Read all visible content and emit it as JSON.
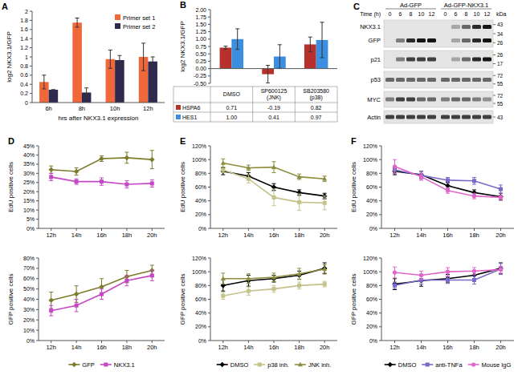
{
  "chart_data": [
    {
      "type": "bar",
      "title": "A",
      "y_label": "log2 NKX3.1/GFP",
      "x_label": "hrs after NKX3.1 expression",
      "categories": [
        "6h",
        "8h",
        "10h",
        "12h"
      ],
      "ylim": [
        0,
        2
      ],
      "yticks": [
        0,
        0.2,
        0.4,
        0.6,
        0.8,
        1,
        1.2,
        1.4,
        1.6,
        1.8,
        2
      ],
      "legend": "top-right",
      "series": [
        {
          "name": "Primer set 1",
          "color": "#f0673a",
          "values": [
            0.45,
            1.75,
            0.95,
            1.0
          ],
          "errors": [
            0.15,
            0.1,
            0.2,
            0.3
          ]
        },
        {
          "name": "Primer set 2",
          "color": "#2e2a4f",
          "values": [
            0.28,
            0.22,
            0.93,
            0.9
          ],
          "errors": [
            0.0,
            0.1,
            0.1,
            0.1
          ]
        }
      ]
    },
    {
      "type": "bar",
      "title": "B",
      "y_label": "log2 NKX3.1/GFP",
      "categories": [
        "DMSO",
        "SP600125 (JNK)",
        "SB203580 (p38)"
      ],
      "ylim": [
        -0.5,
        2.0
      ],
      "yticks": [
        {
          "value": -0.5,
          "label": "-0.50"
        },
        {
          "value": -0.25,
          "label": "-0.25"
        },
        {
          "value": 0,
          "label": "0.00"
        },
        {
          "value": 0.25,
          "label": "0.25"
        },
        {
          "value": 0.5,
          "label": "0.50"
        },
        {
          "value": 0.75,
          "label": "0.75"
        },
        {
          "value": 1,
          "label": "1.00"
        },
        {
          "value": 1.25,
          "label": "1.25"
        },
        {
          "value": 1.5,
          "label": "1.50"
        },
        {
          "value": 1.75,
          "label": "1.75"
        },
        {
          "value": 2,
          "label": "2.00"
        }
      ],
      "tick_labels": "y",
      "legend": "bottom",
      "series": [
        {
          "name": "HSPA6",
          "color": "#b8302b",
          "values": [
            0.71,
            -0.19,
            0.82
          ],
          "value_labels": [
            "0.71",
            "-0.19",
            "0.82"
          ],
          "errors": [
            0.05,
            0.3,
            0.25
          ]
        },
        {
          "name": "HES1",
          "color": "#3b8ee0",
          "values": [
            1.0,
            0.41,
            0.97
          ],
          "value_labels": [
            "1.00",
            "0.41",
            "0.97"
          ],
          "errors": [
            0.35,
            0.4,
            0.6
          ]
        }
      ]
    },
    {
      "type": "blot",
      "title": "C",
      "time_label": "Time (h)",
      "unit": "kDa",
      "groups": [
        {
          "name": "Ad-GFP",
          "lanes": [
            0,
            6,
            8,
            10,
            12
          ]
        },
        {
          "name": "Ad-GFP-NKX3.1",
          "lanes": [
            0,
            6,
            8,
            10,
            12
          ]
        }
      ],
      "panels": [
        {
          "bands": [
            {
              "name": "NKX3.1",
              "intensity": [
                0,
                0,
                0,
                0,
                0,
                0,
                0.3,
                0.6,
                0.9,
                1
              ]
            },
            {
              "name": "GFP",
              "intensity": [
                0,
                0.5,
                0.9,
                1,
                1,
                0,
                0.3,
                0.6,
                0.9,
                1
              ]
            }
          ],
          "markers": [
            43,
            34,
            26
          ]
        },
        {
          "bands": [
            {
              "name": "p21",
              "intensity": [
                0,
                0.5,
                0.8,
                0.8,
                0.8,
                0,
                0.3,
                0.6,
                0.9,
                1
              ]
            }
          ],
          "markers": [
            26,
            17
          ]
        },
        {
          "bands": [
            {
              "name": "p53",
              "intensity": [
                0.6,
                0.6,
                0.6,
                0.6,
                0.6,
                0.6,
                0.6,
                0.6,
                0.6,
                0.6
              ]
            }
          ],
          "markers": [
            72,
            55
          ]
        },
        {
          "bands": [
            {
              "name": "MYC",
              "intensity": [
                0.5,
                0.8,
                0.8,
                0.6,
                0.6,
                0.5,
                0.6,
                0.6,
                0.5,
                0.4
              ]
            }
          ],
          "markers": [
            72,
            55
          ]
        },
        {
          "bands": [
            {
              "name": "Actin",
              "intensity": [
                0.8,
                0.8,
                0.8,
                0.8,
                0.8,
                0.8,
                0.8,
                0.8,
                0.8,
                0.8
              ]
            }
          ],
          "markers": [
            43
          ]
        }
      ]
    },
    {
      "type": "line",
      "title": "D",
      "y_label": "EdU positive cells",
      "categories": [
        "12h",
        "14h",
        "16h",
        "18h",
        "20h"
      ],
      "ylim": [
        0,
        45
      ],
      "yticks": [
        {
          "value": 0,
          "label": "0%"
        },
        {
          "value": 5,
          "label": "5%"
        },
        {
          "value": 10,
          "label": "10%"
        },
        {
          "value": 15,
          "label": "15%"
        },
        {
          "value": 20,
          "label": "20%"
        },
        {
          "value": 25,
          "label": "25%"
        },
        {
          "value": 30,
          "label": "30%"
        },
        {
          "value": 35,
          "label": "35%"
        },
        {
          "value": 40,
          "label": "40%"
        },
        {
          "value": 45,
          "label": "45%"
        }
      ],
      "series": [
        {
          "color": "#7b7b2a",
          "marker": "diamond",
          "values": [
            32,
            31,
            38,
            38.5,
            37.5
          ],
          "errors": [
            2,
            2,
            1.5,
            3,
            5
          ]
        },
        {
          "color": "#c447c4",
          "marker": "square",
          "values": [
            28,
            25.5,
            25.5,
            24,
            24.5
          ],
          "errors": [
            2,
            1.5,
            2,
            2,
            2
          ]
        }
      ]
    },
    {
      "type": "line",
      "y_label": "GFP positive cells",
      "categories": [
        "12h",
        "14h",
        "16h",
        "18h",
        "20h"
      ],
      "ylim": [
        0,
        80
      ],
      "yticks": [
        {
          "value": 0,
          "label": "0%"
        },
        {
          "value": 10,
          "label": "10%"
        },
        {
          "value": 20,
          "label": "20%"
        },
        {
          "value": 30,
          "label": "30%"
        },
        {
          "value": 40,
          "label": "40%"
        },
        {
          "value": 50,
          "label": "50%"
        },
        {
          "value": 60,
          "label": "60%"
        },
        {
          "value": 70,
          "label": "70%"
        },
        {
          "value": 80,
          "label": "80%"
        }
      ],
      "legend": "bottom",
      "series": [
        {
          "name": "GFP",
          "color": "#7b7b2a",
          "marker": "diamond",
          "values": [
            39,
            45,
            52,
            62,
            68
          ],
          "errors": [
            8,
            8,
            8,
            6,
            5
          ]
        },
        {
          "name": "NKX3.1",
          "color": "#c447c4",
          "marker": "square",
          "values": [
            29,
            34,
            45,
            58,
            63
          ],
          "errors": [
            5,
            6,
            5,
            5,
            5
          ]
        }
      ]
    },
    {
      "type": "line",
      "title": "E",
      "y_label": "EdU positive cells",
      "categories": [
        "12h",
        "14h",
        "16h",
        "18h",
        "20h"
      ],
      "ylim": [
        0,
        120
      ],
      "yticks": [
        {
          "value": 0,
          "label": "0%"
        },
        {
          "value": 20,
          "label": "20%"
        },
        {
          "value": 40,
          "label": "40%"
        },
        {
          "value": 60,
          "label": "60%"
        },
        {
          "value": 80,
          "label": "80%"
        },
        {
          "value": 100,
          "label": "100%"
        },
        {
          "value": 120,
          "label": "120%"
        }
      ],
      "series": [
        {
          "color": "#000000",
          "marker": "diamond",
          "values": [
            83,
            76,
            60,
            52,
            47
          ],
          "errors": [
            5,
            5,
            5,
            4,
            4
          ]
        },
        {
          "color": "#c2c28a",
          "marker": "square",
          "values": [
            85,
            72,
            45,
            38,
            37
          ],
          "errors": [
            4,
            6,
            12,
            12,
            10
          ]
        },
        {
          "color": "#8c8c3c",
          "marker": "triangle",
          "values": [
            95,
            88,
            89,
            75,
            72
          ],
          "errors": [
            6,
            4,
            8,
            4,
            4
          ]
        }
      ]
    },
    {
      "type": "line",
      "y_label": "GFP positive cells",
      "categories": [
        "12h",
        "14h",
        "16h",
        "18h",
        "20h"
      ],
      "ylim": [
        0,
        120
      ],
      "yticks": [
        {
          "value": 0,
          "label": "0%"
        },
        {
          "value": 20,
          "label": "20%"
        },
        {
          "value": 40,
          "label": "40%"
        },
        {
          "value": 60,
          "label": "60%"
        },
        {
          "value": 80,
          "label": "80%"
        },
        {
          "value": 100,
          "label": "100%"
        },
        {
          "value": 120,
          "label": "120%"
        }
      ],
      "legend": "bottom",
      "series": [
        {
          "name": "DMSO",
          "color": "#000000",
          "marker": "diamond",
          "values": [
            80,
            87,
            90,
            95,
            105
          ],
          "errors": [
            8,
            8,
            5,
            6,
            8
          ]
        },
        {
          "name": "p38 inh.",
          "color": "#c2c28a",
          "marker": "square",
          "values": [
            65,
            72,
            75,
            80,
            82
          ],
          "errors": [
            5,
            6,
            5,
            5,
            4
          ]
        },
        {
          "name": "JNK inh.",
          "color": "#8c8c3c",
          "marker": "triangle",
          "values": [
            90,
            90,
            92,
            97,
            104
          ],
          "errors": [
            8,
            7,
            6,
            8,
            6
          ]
        }
      ]
    },
    {
      "type": "line",
      "title": "F",
      "y_label": "EdU positive cells",
      "categories": [
        "12h",
        "14h",
        "16h",
        "18h",
        "20h"
      ],
      "ylim": [
        0,
        120
      ],
      "yticks": [
        {
          "value": 0,
          "label": "0%"
        },
        {
          "value": 20,
          "label": "20%"
        },
        {
          "value": 40,
          "label": "40%"
        },
        {
          "value": 60,
          "label": "60%"
        },
        {
          "value": 80,
          "label": "80%"
        },
        {
          "value": 100,
          "label": "100%"
        },
        {
          "value": 120,
          "label": "120%"
        }
      ],
      "series": [
        {
          "color": "#000000",
          "marker": "diamond",
          "values": [
            83,
            78,
            62,
            52,
            46
          ],
          "errors": [
            5,
            5,
            5,
            4,
            5
          ]
        },
        {
          "color": "#7b68c8",
          "marker": "square",
          "values": [
            85,
            77,
            70,
            69,
            57
          ],
          "errors": [
            5,
            6,
            4,
            5,
            6
          ]
        },
        {
          "color": "#e066cc",
          "marker": "circle",
          "values": [
            90,
            75,
            55,
            47,
            45
          ],
          "errors": [
            10,
            5,
            4,
            4,
            3
          ]
        }
      ]
    },
    {
      "type": "line",
      "y_label": "GFP positive cells",
      "categories": [
        "12h",
        "14h",
        "16h",
        "18h",
        "20h"
      ],
      "ylim": [
        0,
        120
      ],
      "yticks": [
        {
          "value": 0,
          "label": "0%"
        },
        {
          "value": 20,
          "label": "20%"
        },
        {
          "value": 40,
          "label": "40%"
        },
        {
          "value": 60,
          "label": "60%"
        },
        {
          "value": 80,
          "label": "80%"
        },
        {
          "value": 100,
          "label": "100%"
        },
        {
          "value": 120,
          "label": "120%"
        }
      ],
      "legend": "bottom",
      "series": [
        {
          "name": "DMSO",
          "color": "#000000",
          "marker": "diamond",
          "values": [
            82,
            87,
            90,
            95,
            105
          ],
          "errors": [
            8,
            8,
            6,
            7,
            8
          ]
        },
        {
          "name": "anti-TNFa",
          "color": "#7b68c8",
          "marker": "square",
          "values": [
            80,
            88,
            88,
            88,
            104
          ],
          "errors": [
            5,
            6,
            5,
            6,
            8
          ]
        },
        {
          "name": "Mouse IgG",
          "color": "#e066cc",
          "marker": "circle",
          "values": [
            99,
            95,
            100,
            101,
            103
          ],
          "errors": [
            8,
            6,
            6,
            5,
            5
          ]
        }
      ]
    }
  ]
}
